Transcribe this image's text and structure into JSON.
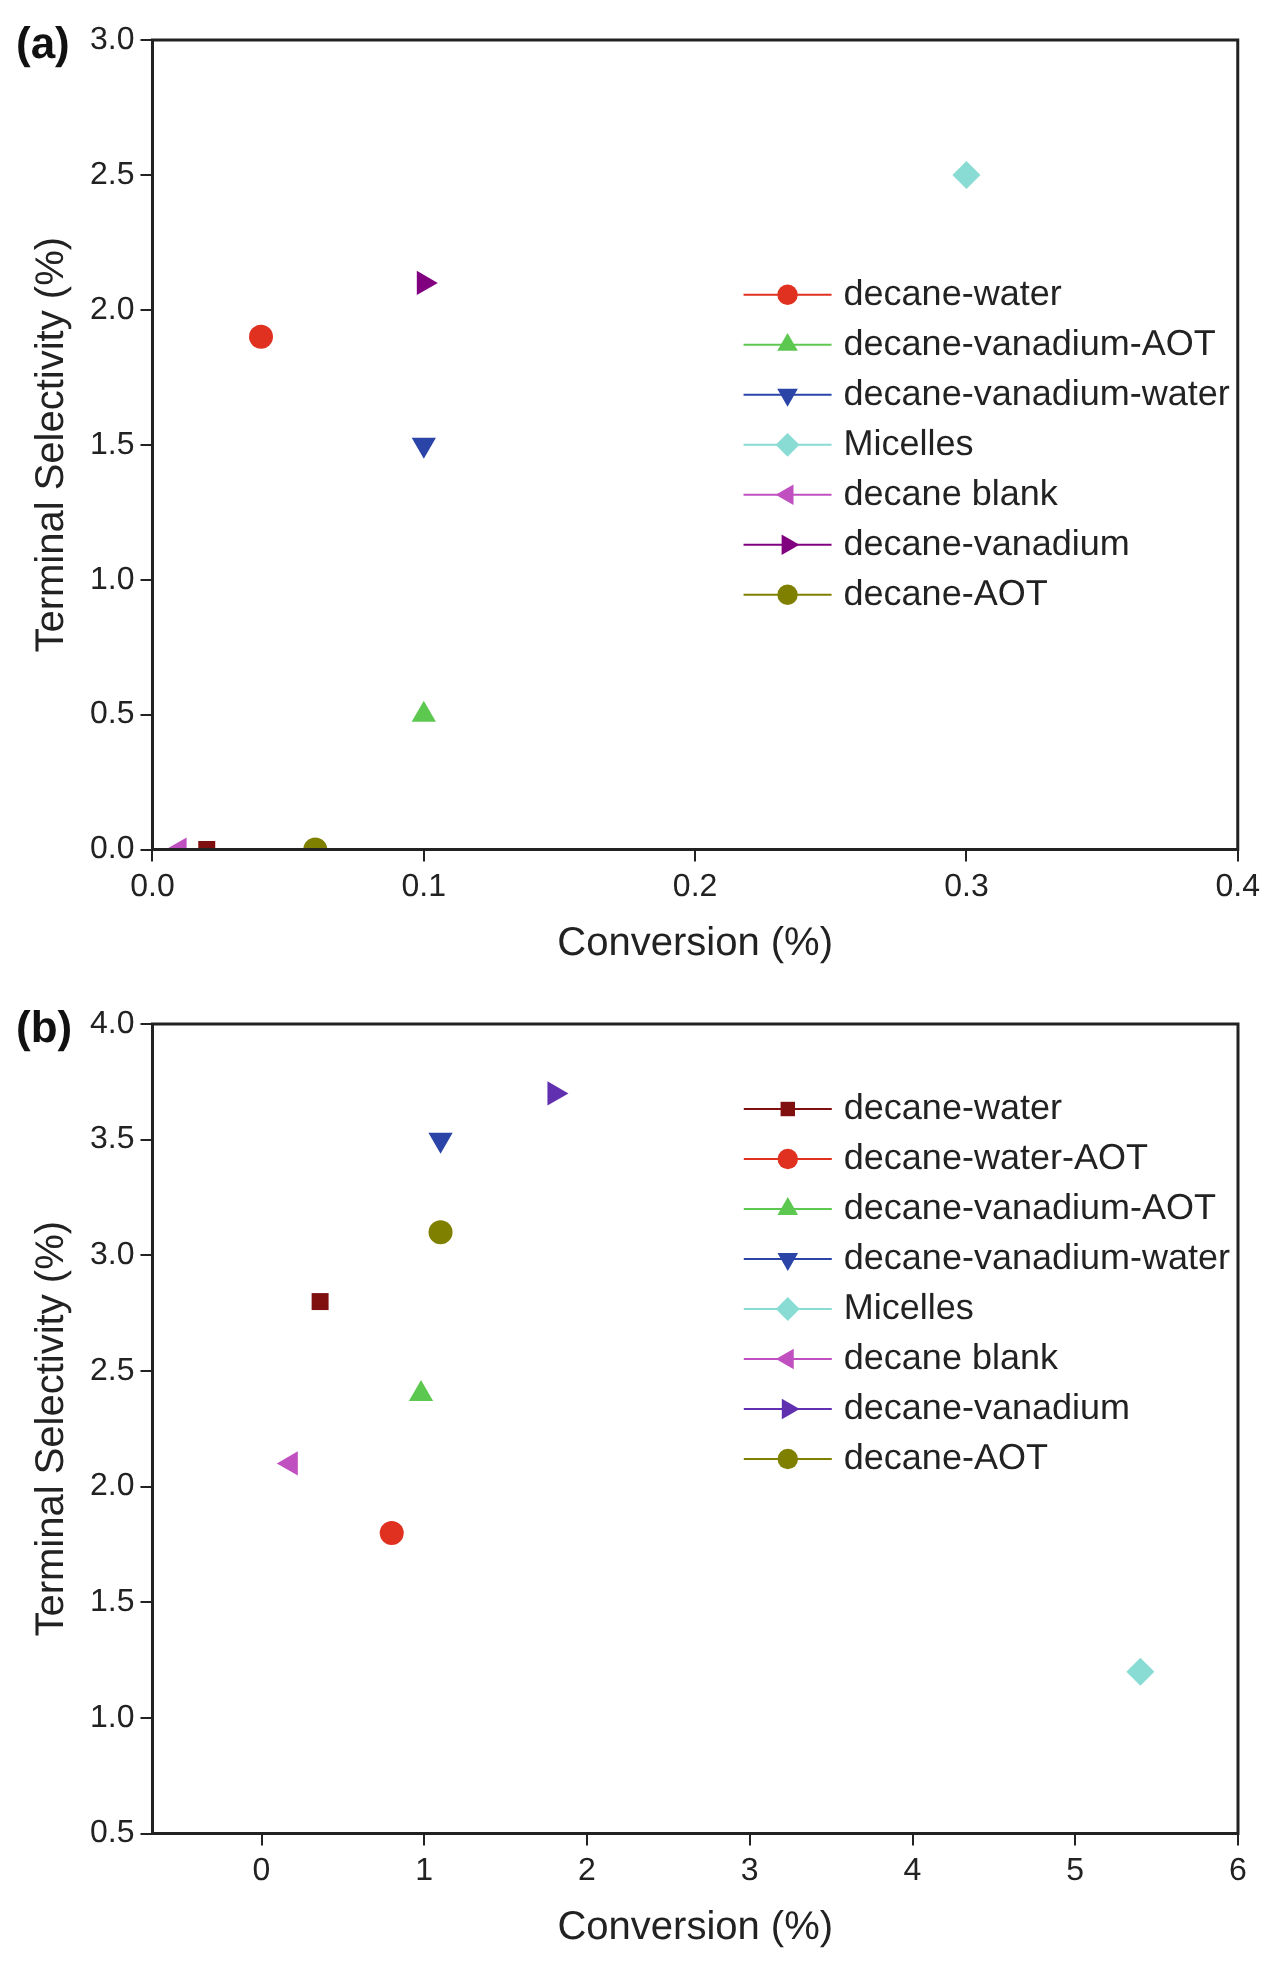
{
  "chart_data": [
    {
      "type": "scatter",
      "title": "(a)",
      "xlabel": "Conversion (%)",
      "ylabel": "Terminal Selectivity (%)",
      "xlim": [
        0,
        0.4
      ],
      "xticks": [
        {
          "value": 0,
          "label": "0.0"
        },
        0.1,
        0.2,
        0.3,
        0.4
      ],
      "ylim": [
        0,
        3
      ],
      "yticks": [
        {
          "value": 0,
          "label": "0.0"
        },
        0.5,
        {
          "value": 1,
          "label": "1.0"
        },
        1.5,
        {
          "value": 2,
          "label": "2.0"
        },
        2.5,
        {
          "value": 3,
          "label": "3.0"
        }
      ],
      "grid": false,
      "legend": "right",
      "series": [
        {
          "name": "decane-water",
          "color": "#e03020",
          "marker": "circle",
          "x": [
            0.04
          ],
          "values": [
            1.9
          ]
        },
        {
          "name": "decane-vanadium-AOT",
          "color": "#5cc850",
          "marker": "triangle",
          "x": [
            0.1
          ],
          "values": [
            0.5
          ]
        },
        {
          "name": "decane-vanadium-water",
          "color": "#2a44a8",
          "marker": "triangle-down",
          "x": [
            0.1
          ],
          "values": [
            1.5
          ]
        },
        {
          "name": "Micelles",
          "color": "#88dcd4",
          "marker": "diamond",
          "x": [
            0.3
          ],
          "values": [
            2.5
          ]
        },
        {
          "name": "decane blank",
          "color": "#c050c0",
          "marker": "triangle-left",
          "x": [
            0.01
          ],
          "values": [
            0
          ]
        },
        {
          "name": "decane-vanadium",
          "color": "#800080",
          "marker": "triangle-right",
          "x": [
            0.1
          ],
          "values": [
            2.1
          ]
        },
        {
          "name": "decane-AOT",
          "color": "#808000",
          "marker": "circle",
          "x": [
            0.06
          ],
          "values": [
            0
          ]
        },
        {
          "color": "#801010",
          "marker": "square",
          "x": [
            0.02
          ],
          "values": [
            0
          ]
        }
      ]
    },
    {
      "type": "scatter",
      "title": "(b)",
      "xlabel": "Conversion (%)",
      "ylabel": "Terminal Selectivity (%)",
      "xlim": [
        -0.67,
        6
      ],
      "xticks": [
        0,
        1,
        2,
        3,
        4,
        5,
        6
      ],
      "ylim": [
        0.5,
        4
      ],
      "yticks": [
        0.5,
        {
          "value": 1,
          "label": "1.0"
        },
        1.5,
        {
          "value": 2,
          "label": "2.0"
        },
        2.5,
        {
          "value": 3,
          "label": "3.0"
        },
        3.5,
        {
          "value": 4,
          "label": "4.0"
        }
      ],
      "grid": false,
      "legend": "top right",
      "series": [
        {
          "name": "decane-water",
          "color": "#801010",
          "marker": "square",
          "x": [
            0.36
          ],
          "values": [
            2.8
          ]
        },
        {
          "name": "decane-water-AOT",
          "color": "#e03020",
          "marker": "circle",
          "x": [
            0.8
          ],
          "values": [
            1.8
          ]
        },
        {
          "name": "decane-vanadium-AOT",
          "color": "#5cc850",
          "marker": "triangle",
          "x": [
            0.98
          ],
          "values": [
            2.4
          ]
        },
        {
          "name": "decane-vanadium-water",
          "color": "#2a44a8",
          "marker": "triangle-down",
          "x": [
            1.1
          ],
          "values": [
            3.5
          ]
        },
        {
          "name": "Micelles",
          "color": "#88dcd4",
          "marker": "diamond",
          "x": [
            5.4
          ],
          "values": [
            1.2
          ]
        },
        {
          "name": "decane blank",
          "color": "#c050c0",
          "marker": "triangle-left",
          "x": [
            0.18
          ],
          "values": [
            2.1
          ]
        },
        {
          "name": "decane-vanadium",
          "color": "#6030b0",
          "marker": "triangle-right",
          "x": [
            1.8
          ],
          "values": [
            3.7
          ]
        },
        {
          "name": "decane-AOT",
          "color": "#808000",
          "marker": "circle",
          "x": [
            1.1
          ],
          "values": [
            3.1
          ]
        }
      ]
    }
  ]
}
